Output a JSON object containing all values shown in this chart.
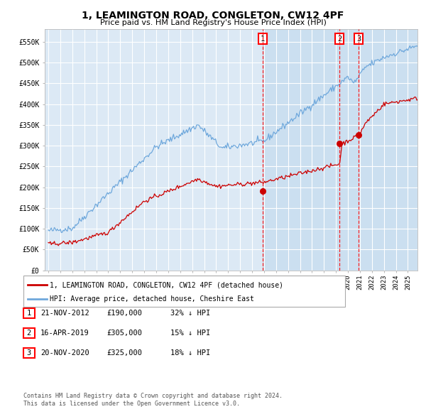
{
  "title": "1, LEAMINGTON ROAD, CONGLETON, CW12 4PF",
  "subtitle": "Price paid vs. HM Land Registry's House Price Index (HPI)",
  "background_color": "#ffffff",
  "plot_bg_color": "#dce9f5",
  "grid_color": "#ffffff",
  "hpi_color": "#6fa8dc",
  "price_color": "#cc0000",
  "ylim": [
    0,
    580000
  ],
  "yticks": [
    0,
    50000,
    100000,
    150000,
    200000,
    250000,
    300000,
    350000,
    400000,
    450000,
    500000,
    550000
  ],
  "ytick_labels": [
    "£0",
    "£50K",
    "£100K",
    "£150K",
    "£200K",
    "£250K",
    "£300K",
    "£350K",
    "£400K",
    "£450K",
    "£500K",
    "£550K"
  ],
  "sale_year_floats": [
    2012.896,
    2019.292,
    2020.896
  ],
  "sale_prices": [
    190000,
    305000,
    325000
  ],
  "sale_labels": [
    "1",
    "2",
    "3"
  ],
  "sale_info": [
    {
      "label": "1",
      "date": "21-NOV-2012",
      "price": "£190,000",
      "hpi": "32% ↓ HPI"
    },
    {
      "label": "2",
      "date": "16-APR-2019",
      "price": "£305,000",
      "hpi": "15% ↓ HPI"
    },
    {
      "label": "3",
      "date": "20-NOV-2020",
      "price": "£325,000",
      "hpi": "18% ↓ HPI"
    }
  ],
  "legend_entries": [
    "1, LEAMINGTON ROAD, CONGLETON, CW12 4PF (detached house)",
    "HPI: Average price, detached house, Cheshire East"
  ],
  "footnote": "Contains HM Land Registry data © Crown copyright and database right 2024.\nThis data is licensed under the Open Government Licence v3.0.",
  "xstart_year": 1995,
  "xend_year": 2025
}
